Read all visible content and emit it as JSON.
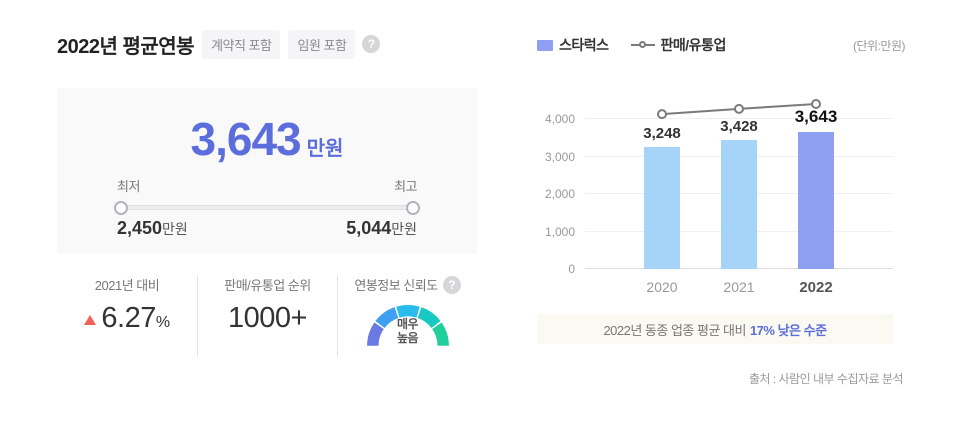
{
  "colors": {
    "accent": "#5b6edb",
    "card_bg": "#f9f9fa",
    "note_bg": "#fbfaf2",
    "trend_up": "#f0615c"
  },
  "left": {
    "title": "2022년 평균연봉",
    "tags": [
      "계약직 포함",
      "임원 포함"
    ],
    "help_icon": "?",
    "summary": {
      "value": "3,643",
      "unit": "만원",
      "min_label": "최저",
      "max_label": "최고",
      "min_value": "2,450",
      "min_unit": "만원",
      "max_value": "5,044",
      "max_unit": "만원"
    },
    "stats": [
      {
        "label": "2021년 대비",
        "value": "6.27",
        "suffix": "%",
        "trend": "up"
      },
      {
        "label": "판매/유통업 순위",
        "value": "1000+"
      },
      {
        "label": "연봉정보 신뢰도",
        "value": "매우 높음"
      }
    ],
    "gauge": {
      "line1": "매우",
      "line2": "높음",
      "colors": [
        "#6b79e3",
        "#3fa0f2",
        "#2abbed",
        "#18c9c1",
        "#20cf9c"
      ]
    }
  },
  "right": {
    "legend": {
      "bar_label": "스타럭스",
      "line_label": "판매/유통업",
      "unit_note": "(단위:만원)"
    },
    "note": {
      "prefix": "2022년 동종 업종 평균 대비",
      "highlight": "17% 낮은 수준"
    },
    "source": "출처 : 사람인 내부 수집자료 분석"
  },
  "chart_data": {
    "type": "bar",
    "categories": [
      "2020",
      "2021",
      "2022"
    ],
    "series": [
      {
        "name": "스타럭스",
        "type": "bar",
        "values": [
          3248,
          3428,
          3643
        ]
      },
      {
        "name": "판매/유통업",
        "type": "line",
        "values": [
          4130,
          4270,
          4400
        ],
        "note": "unlabeled, estimated from pixels"
      }
    ],
    "title": "",
    "xlabel": "",
    "ylabel": "만원",
    "ylim": [
      0,
      4560
    ],
    "yticks": [
      0,
      1000,
      2000,
      3000,
      4000
    ],
    "grid": true,
    "legend_position": "top",
    "highlight_index": 2,
    "colors": {
      "bar": "#a6d3f8",
      "bar_highlight": "#8f9ff2",
      "line": "#7a7a7a"
    }
  }
}
